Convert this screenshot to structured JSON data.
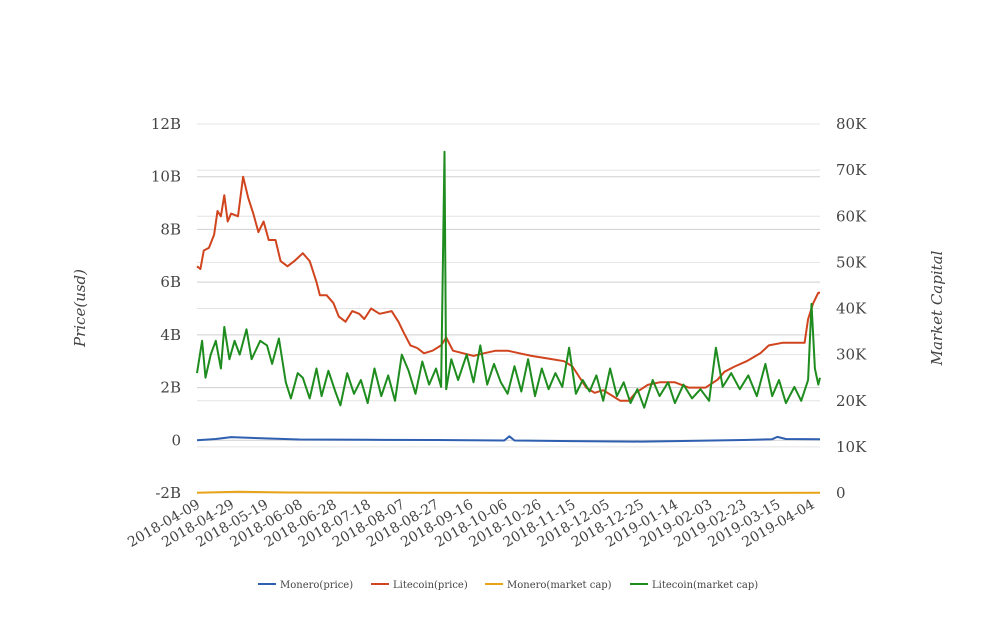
{
  "chart_data": {
    "type": "line",
    "title": "",
    "ylabel_left": "Price(usd)",
    "ylabel_right": "Market Capital",
    "left_axis": {
      "ticks": [
        "12B",
        "10B",
        "8B",
        "6B",
        "4B",
        "2B",
        "0",
        "-2B"
      ],
      "range": [
        -2,
        12
      ],
      "unit_note": "billions"
    },
    "right_axis": {
      "ticks": [
        "80K",
        "70K",
        "60K",
        "50K",
        "40K",
        "30K",
        "20K",
        "10K",
        "0"
      ],
      "range": [
        0,
        80
      ],
      "unit_note": "thousands"
    },
    "x_tick_labels": [
      "2018-04-09",
      "2018-04-29",
      "2018-05-19",
      "2018-06-08",
      "2018-06-28",
      "2018-07-18",
      "2018-08-07",
      "2018-08-27",
      "2018-09-16",
      "2018-10-06",
      "2018-10-26",
      "2018-11-15",
      "2018-12-05",
      "2018-12-25",
      "2019-01-14",
      "2019-02-03",
      "2019-02-23",
      "2019-03-15",
      "2019-04-04"
    ],
    "x_start": "2018-04-09",
    "x_end": "2019-04-09",
    "legend_position": "bottom",
    "grid": true,
    "series": [
      {
        "name": "Monero(price)",
        "axis": "left",
        "color": "#2f5fb0",
        "points": [
          [
            "2018-04-09",
            0.0
          ],
          [
            "2018-04-20",
            0.05
          ],
          [
            "2018-04-29",
            0.12
          ],
          [
            "2018-05-19",
            0.07
          ],
          [
            "2018-06-08",
            0.03
          ],
          [
            "2018-07-18",
            0.02
          ],
          [
            "2018-08-27",
            0.01
          ],
          [
            "2018-10-06",
            -0.01
          ],
          [
            "2018-10-09",
            0.15
          ],
          [
            "2018-10-12",
            -0.01
          ],
          [
            "2018-11-15",
            -0.03
          ],
          [
            "2018-12-25",
            -0.05
          ],
          [
            "2019-01-14",
            -0.03
          ],
          [
            "2019-02-23",
            0.01
          ],
          [
            "2019-03-12",
            0.04
          ],
          [
            "2019-03-15",
            0.13
          ],
          [
            "2019-03-20",
            0.05
          ],
          [
            "2019-04-09",
            0.04
          ]
        ]
      },
      {
        "name": "Litecoin(price)",
        "axis": "left",
        "color": "#d0441e",
        "points": [
          [
            "2018-04-09",
            6.6
          ],
          [
            "2018-04-11",
            6.5
          ],
          [
            "2018-04-13",
            7.2
          ],
          [
            "2018-04-16",
            7.3
          ],
          [
            "2018-04-19",
            7.8
          ],
          [
            "2018-04-21",
            8.7
          ],
          [
            "2018-04-23",
            8.5
          ],
          [
            "2018-04-25",
            9.3
          ],
          [
            "2018-04-27",
            8.3
          ],
          [
            "2018-04-29",
            8.6
          ],
          [
            "2018-05-03",
            8.5
          ],
          [
            "2018-05-06",
            10.0
          ],
          [
            "2018-05-09",
            9.2
          ],
          [
            "2018-05-12",
            8.6
          ],
          [
            "2018-05-15",
            7.9
          ],
          [
            "2018-05-18",
            8.3
          ],
          [
            "2018-05-21",
            7.6
          ],
          [
            "2018-05-25",
            7.6
          ],
          [
            "2018-05-28",
            6.8
          ],
          [
            "2018-06-01",
            6.6
          ],
          [
            "2018-06-05",
            6.8
          ],
          [
            "2018-06-10",
            7.1
          ],
          [
            "2018-06-14",
            6.8
          ],
          [
            "2018-06-18",
            6.0
          ],
          [
            "2018-06-20",
            5.5
          ],
          [
            "2018-06-24",
            5.5
          ],
          [
            "2018-06-28",
            5.2
          ],
          [
            "2018-07-01",
            4.7
          ],
          [
            "2018-07-05",
            4.5
          ],
          [
            "2018-07-09",
            4.9
          ],
          [
            "2018-07-13",
            4.8
          ],
          [
            "2018-07-16",
            4.6
          ],
          [
            "2018-07-20",
            5.0
          ],
          [
            "2018-07-25",
            4.8
          ],
          [
            "2018-08-01",
            4.9
          ],
          [
            "2018-08-05",
            4.5
          ],
          [
            "2018-08-08",
            4.1
          ],
          [
            "2018-08-12",
            3.6
          ],
          [
            "2018-08-16",
            3.5
          ],
          [
            "2018-08-20",
            3.3
          ],
          [
            "2018-08-25",
            3.4
          ],
          [
            "2018-08-30",
            3.6
          ],
          [
            "2018-09-02",
            3.9
          ],
          [
            "2018-09-06",
            3.4
          ],
          [
            "2018-09-12",
            3.3
          ],
          [
            "2018-09-18",
            3.2
          ],
          [
            "2018-09-24",
            3.3
          ],
          [
            "2018-10-01",
            3.4
          ],
          [
            "2018-10-08",
            3.4
          ],
          [
            "2018-10-15",
            3.3
          ],
          [
            "2018-10-22",
            3.2
          ],
          [
            "2018-11-01",
            3.1
          ],
          [
            "2018-11-10",
            3.0
          ],
          [
            "2018-11-15",
            2.8
          ],
          [
            "2018-11-19",
            2.4
          ],
          [
            "2018-11-23",
            2.0
          ],
          [
            "2018-11-28",
            1.8
          ],
          [
            "2018-12-03",
            1.9
          ],
          [
            "2018-12-08",
            1.7
          ],
          [
            "2018-12-13",
            1.5
          ],
          [
            "2018-12-18",
            1.5
          ],
          [
            "2018-12-22",
            1.8
          ],
          [
            "2018-12-29",
            2.1
          ],
          [
            "2019-01-05",
            2.2
          ],
          [
            "2019-01-14",
            2.2
          ],
          [
            "2019-01-22",
            2.0
          ],
          [
            "2019-02-01",
            2.0
          ],
          [
            "2019-02-08",
            2.3
          ],
          [
            "2019-02-12",
            2.6
          ],
          [
            "2019-02-18",
            2.8
          ],
          [
            "2019-02-25",
            3.0
          ],
          [
            "2019-03-05",
            3.3
          ],
          [
            "2019-03-10",
            3.6
          ],
          [
            "2019-03-18",
            3.7
          ],
          [
            "2019-03-25",
            3.7
          ],
          [
            "2019-03-31",
            3.7
          ],
          [
            "2019-04-02",
            4.6
          ],
          [
            "2019-04-05",
            5.2
          ],
          [
            "2019-04-08",
            5.6
          ],
          [
            "2019-04-09",
            5.6
          ]
        ]
      },
      {
        "name": "Monero(market cap)",
        "axis": "right",
        "color": "#e8a317",
        "points": [
          [
            "2018-04-09",
            0.05
          ],
          [
            "2018-05-03",
            0.25
          ],
          [
            "2018-06-01",
            0.1
          ],
          [
            "2018-08-01",
            0.05
          ],
          [
            "2018-12-01",
            0.02
          ],
          [
            "2019-04-09",
            0.05
          ]
        ]
      },
      {
        "name": "Litecoin(market cap)",
        "axis": "right",
        "color": "#1e8c1e",
        "points": [
          [
            "2018-04-09",
            26.0
          ],
          [
            "2018-04-12",
            33.0
          ],
          [
            "2018-04-14",
            25.0
          ],
          [
            "2018-04-17",
            30.0
          ],
          [
            "2018-04-20",
            33.0
          ],
          [
            "2018-04-23",
            27.0
          ],
          [
            "2018-04-25",
            36.0
          ],
          [
            "2018-04-28",
            29.0
          ],
          [
            "2018-05-01",
            33.0
          ],
          [
            "2018-05-04",
            30.0
          ],
          [
            "2018-05-08",
            35.5
          ],
          [
            "2018-05-11",
            29.0
          ],
          [
            "2018-05-16",
            33.0
          ],
          [
            "2018-05-20",
            32.0
          ],
          [
            "2018-05-23",
            28.0
          ],
          [
            "2018-05-27",
            33.5
          ],
          [
            "2018-05-31",
            24.0
          ],
          [
            "2018-06-03",
            20.5
          ],
          [
            "2018-06-07",
            26.0
          ],
          [
            "2018-06-10",
            25.0
          ],
          [
            "2018-06-14",
            20.5
          ],
          [
            "2018-06-18",
            27.0
          ],
          [
            "2018-06-21",
            21.0
          ],
          [
            "2018-06-25",
            26.5
          ],
          [
            "2018-06-29",
            22.0
          ],
          [
            "2018-07-02",
            19.0
          ],
          [
            "2018-07-06",
            26.0
          ],
          [
            "2018-07-10",
            21.5
          ],
          [
            "2018-07-14",
            24.5
          ],
          [
            "2018-07-18",
            19.5
          ],
          [
            "2018-07-22",
            27.0
          ],
          [
            "2018-07-26",
            21.0
          ],
          [
            "2018-07-30",
            25.5
          ],
          [
            "2018-08-03",
            20.0
          ],
          [
            "2018-08-07",
            30.0
          ],
          [
            "2018-08-11",
            26.5
          ],
          [
            "2018-08-15",
            21.5
          ],
          [
            "2018-08-19",
            28.5
          ],
          [
            "2018-08-23",
            23.5
          ],
          [
            "2018-08-27",
            27.0
          ],
          [
            "2018-08-30",
            23.0
          ],
          [
            "2018-09-01",
            74.0
          ],
          [
            "2018-09-02",
            22.5
          ],
          [
            "2018-09-05",
            29.0
          ],
          [
            "2018-09-09",
            24.5
          ],
          [
            "2018-09-14",
            30.0
          ],
          [
            "2018-09-18",
            24.0
          ],
          [
            "2018-09-22",
            32.0
          ],
          [
            "2018-09-26",
            23.5
          ],
          [
            "2018-09-30",
            28.0
          ],
          [
            "2018-10-04",
            24.0
          ],
          [
            "2018-10-08",
            21.5
          ],
          [
            "2018-10-12",
            27.5
          ],
          [
            "2018-10-16",
            22.0
          ],
          [
            "2018-10-20",
            29.0
          ],
          [
            "2018-10-24",
            21.0
          ],
          [
            "2018-10-28",
            27.0
          ],
          [
            "2018-11-01",
            22.5
          ],
          [
            "2018-11-05",
            26.0
          ],
          [
            "2018-11-09",
            23.0
          ],
          [
            "2018-11-13",
            31.5
          ],
          [
            "2018-11-17",
            21.5
          ],
          [
            "2018-11-21",
            24.5
          ],
          [
            "2018-11-25",
            22.0
          ],
          [
            "2018-11-29",
            25.5
          ],
          [
            "2018-12-03",
            20.0
          ],
          [
            "2018-12-07",
            27.0
          ],
          [
            "2018-12-11",
            21.0
          ],
          [
            "2018-12-15",
            24.0
          ],
          [
            "2018-12-19",
            19.5
          ],
          [
            "2018-12-23",
            22.5
          ],
          [
            "2018-12-27",
            18.5
          ],
          [
            "2019-01-01",
            24.5
          ],
          [
            "2019-01-05",
            21.0
          ],
          [
            "2019-01-10",
            24.0
          ],
          [
            "2019-01-14",
            19.5
          ],
          [
            "2019-01-19",
            23.5
          ],
          [
            "2019-01-24",
            20.5
          ],
          [
            "2019-01-29",
            22.5
          ],
          [
            "2019-02-03",
            20.0
          ],
          [
            "2019-02-07",
            31.5
          ],
          [
            "2019-02-11",
            23.0
          ],
          [
            "2019-02-16",
            26.0
          ],
          [
            "2019-02-21",
            22.5
          ],
          [
            "2019-02-26",
            25.5
          ],
          [
            "2019-03-03",
            21.0
          ],
          [
            "2019-03-08",
            28.0
          ],
          [
            "2019-03-12",
            21.0
          ],
          [
            "2019-03-16",
            24.5
          ],
          [
            "2019-03-20",
            19.5
          ],
          [
            "2019-03-25",
            23.0
          ],
          [
            "2019-03-29",
            20.0
          ],
          [
            "2019-04-02",
            24.5
          ],
          [
            "2019-04-04",
            41.0
          ],
          [
            "2019-04-06",
            27.0
          ],
          [
            "2019-04-08",
            23.5
          ],
          [
            "2019-04-09",
            25.0
          ]
        ]
      }
    ]
  }
}
